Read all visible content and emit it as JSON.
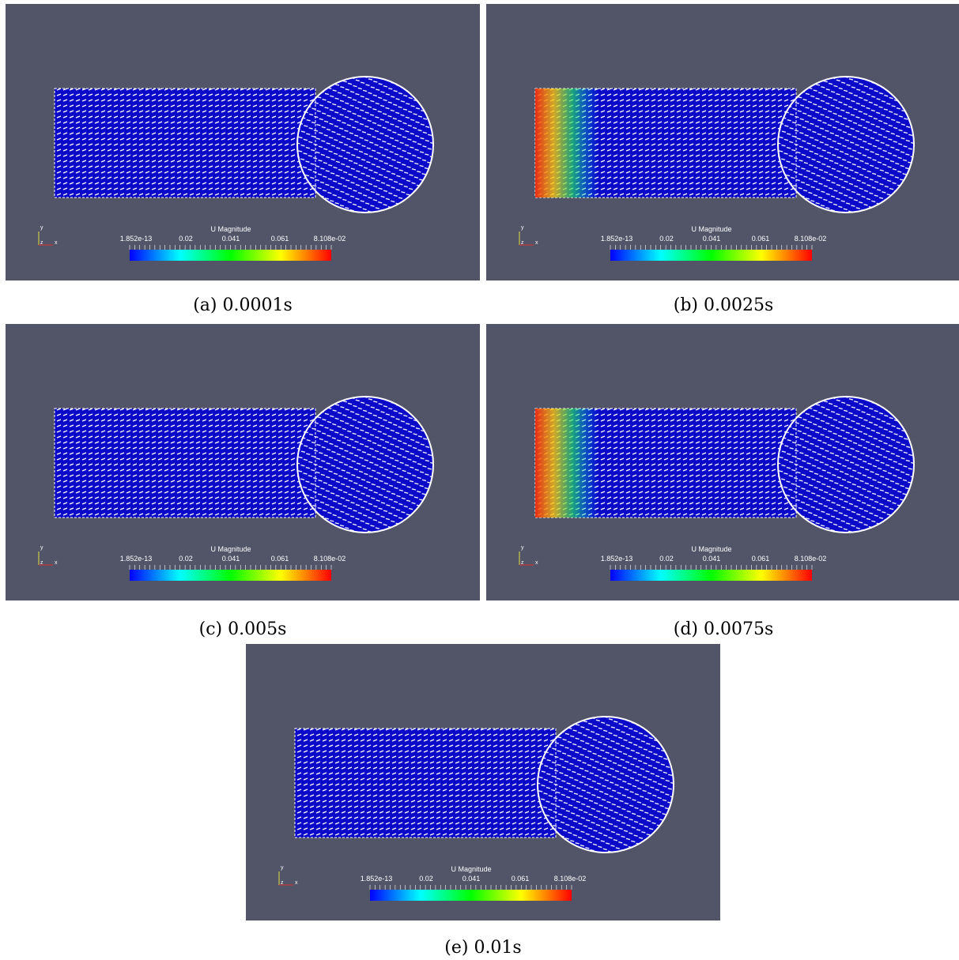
{
  "figure": {
    "panels": [
      {
        "caption": "(a) 0.0001s",
        "legend": {
          "title": "U Magnitude",
          "ticks": [
            "1.852e-13",
            "0.02",
            "0.041",
            "0.061",
            "8.108e-02"
          ]
        },
        "axes": [
          "y",
          "z",
          "x"
        ]
      },
      {
        "caption": "(b) 0.0025s",
        "legend": {
          "title": "U Magnitude",
          "ticks": [
            "1.852e-13",
            "0.02",
            "0.041",
            "0.061",
            "8.108e-02"
          ]
        },
        "axes": [
          "y",
          "z",
          "x"
        ]
      },
      {
        "caption": "(c) 0.005s",
        "legend": {
          "title": "U Magnitude",
          "ticks": [
            "1.852e-13",
            "0.02",
            "0.041",
            "0.061",
            "8.108e-02"
          ]
        },
        "axes": [
          "y",
          "z",
          "x"
        ]
      },
      {
        "caption": "(d) 0.0075s",
        "legend": {
          "title": "U Magnitude",
          "ticks": [
            "1.852e-13",
            "0.02",
            "0.041",
            "0.061",
            "8.108e-02"
          ]
        },
        "axes": [
          "y",
          "z",
          "x"
        ]
      },
      {
        "caption": "(e) 0.01s",
        "legend": {
          "title": "U Magnitude",
          "ticks": [
            "1.852e-13",
            "0.02",
            "0.041",
            "0.061",
            "8.108e-02"
          ]
        },
        "axes": [
          "y",
          "z",
          "x"
        ]
      }
    ]
  }
}
